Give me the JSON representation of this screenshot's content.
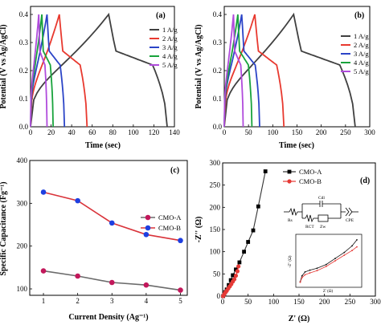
{
  "chart_data": [
    {
      "type": "line",
      "panel_label": "(a)",
      "xlabel": "Time (sec)",
      "ylabel": "Potential (V vs Ag/AgCl)",
      "xlim": [
        0,
        140
      ],
      "ylim": [
        0,
        0.4
      ],
      "xticks": [
        0,
        20,
        40,
        60,
        80,
        100,
        120,
        140
      ],
      "yticks": [
        0.0,
        0.1,
        0.2,
        0.3,
        0.4
      ],
      "legend_position": "right",
      "series": [
        {
          "name": "1 A/g",
          "color": "#404040",
          "t_peak": 76,
          "t_end": 133
        },
        {
          "name": "2 A/g",
          "color": "#e8392f",
          "t_peak": 28,
          "t_end": 55
        },
        {
          "name": "3 A/g",
          "color": "#2b44c7",
          "t_peak": 16,
          "t_end": 33
        },
        {
          "name": "4 A/g",
          "color": "#18a33c",
          "t_peak": 11,
          "t_end": 22
        },
        {
          "name": "5 A/g",
          "color": "#b04bdc",
          "t_peak": 8,
          "t_end": 16
        }
      ]
    },
    {
      "type": "line",
      "panel_label": "(b)",
      "xlabel": "Time (sec)",
      "ylabel": "Potential (V vs Ag/AgCl)",
      "xlim": [
        0,
        300
      ],
      "ylim": [
        0,
        0.4
      ],
      "xticks": [
        0,
        50,
        100,
        150,
        200,
        250,
        300
      ],
      "yticks": [
        0.0,
        0.1,
        0.2,
        0.3,
        0.4
      ],
      "legend_position": "right",
      "series": [
        {
          "name": "1 A/g",
          "color": "#404040",
          "t_peak": 143,
          "t_end": 270
        },
        {
          "name": "2 A/g",
          "color": "#e8392f",
          "t_peak": 63,
          "t_end": 123
        },
        {
          "name": "3 A/g",
          "color": "#2b44c7",
          "t_peak": 36,
          "t_end": 73
        },
        {
          "name": "4 A/g",
          "color": "#18a33c",
          "t_peak": 28,
          "t_end": 57
        },
        {
          "name": "5 A/g",
          "color": "#b04bdc",
          "t_peak": 19,
          "t_end": 39
        }
      ]
    },
    {
      "type": "line",
      "panel_label": "(c)",
      "xlabel": "Current Density (Ag⁻¹)",
      "ylabel": "Specific Capacitance (Fg⁻¹)",
      "xlim": [
        0.6,
        5.2
      ],
      "ylim": [
        85,
        400
      ],
      "xticks": [
        1,
        2,
        3,
        4,
        5
      ],
      "yticks": [
        100,
        200,
        300,
        400
      ],
      "legend_position": "upper-right",
      "series": [
        {
          "name": "CMO-A",
          "color": "#c2185b",
          "x": [
            1,
            2,
            3,
            4,
            5
          ],
          "values": [
            142,
            130,
            115,
            109,
            97
          ]
        },
        {
          "name": "CMO-B",
          "color": "#1e3fe0",
          "x": [
            1,
            2,
            3,
            4,
            5
          ],
          "values": [
            326,
            306,
            254,
            227,
            213
          ]
        }
      ]
    },
    {
      "type": "scatter",
      "panel_label": "(d)",
      "xlabel": "Z' (Ω)",
      "ylabel": "-Z'' (Ω)",
      "xlim": [
        0,
        300
      ],
      "ylim": [
        0,
        300
      ],
      "xticks": [
        0,
        50,
        100,
        150,
        200,
        250,
        300
      ],
      "yticks": [
        0,
        50,
        100,
        150,
        200,
        250,
        300
      ],
      "legend_position": "upper-right",
      "series": [
        {
          "name": "CMO-A",
          "color": "#000000",
          "x": [
            1,
            3,
            5,
            8,
            12,
            16,
            20,
            26,
            33,
            42,
            50,
            60,
            70,
            84
          ],
          "values": [
            0,
            4,
            9,
            15,
            25,
            36,
            47,
            60,
            76,
            100,
            122,
            148,
            202,
            281
          ]
        },
        {
          "name": "CMO-B",
          "color": "#e53935",
          "x": [
            1,
            3,
            5,
            8,
            11,
            14,
            17,
            20,
            23,
            26,
            29,
            31
          ],
          "values": [
            0,
            4,
            8,
            12,
            17,
            22,
            27,
            33,
            38,
            46,
            56,
            67
          ]
        }
      ],
      "inset": {
        "circuit_labels": [
          "Cdl",
          "Rs",
          "RCT",
          "Zw",
          "CPE"
        ],
        "xlabel": "Z' (Ω)",
        "ylabel": "-Z'' (Ω)"
      }
    }
  ]
}
